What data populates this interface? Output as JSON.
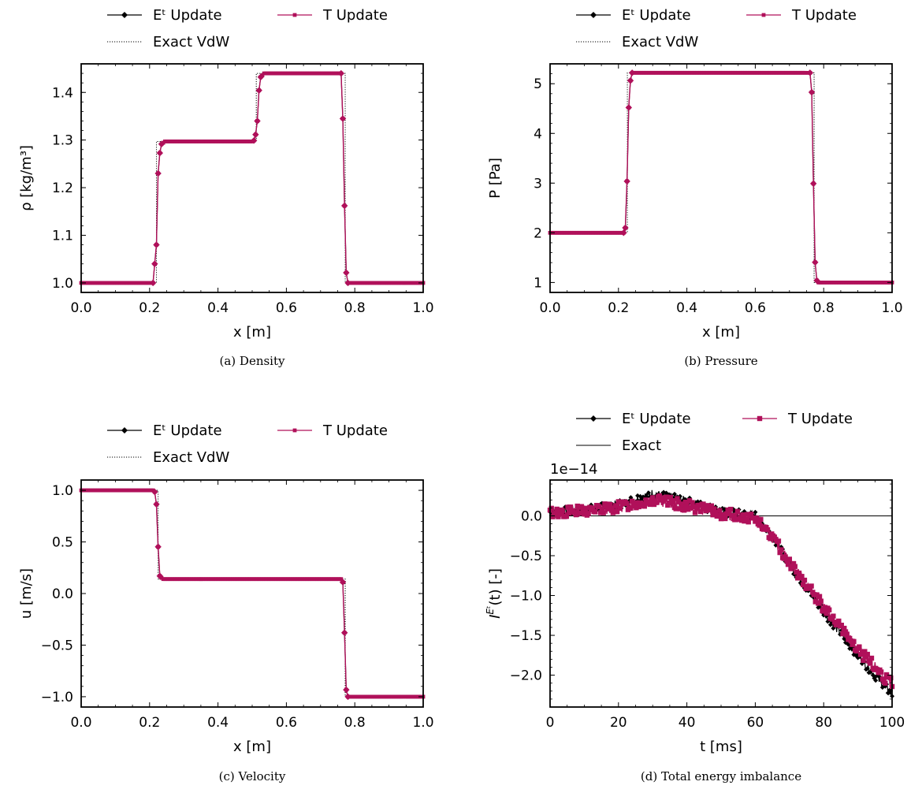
{
  "colors": {
    "e_update": "#000000",
    "t_update": "#b0105a",
    "exact": "#000000",
    "background": "#ffffff"
  },
  "chart_data": [
    {
      "type": "line",
      "caption": "(a) Density",
      "xlabel": "x [m]",
      "ylabel": "ρ [kg/m³]",
      "xlim": [
        0.0,
        1.0
      ],
      "ylim": [
        0.98,
        1.46
      ],
      "xticks": [
        "0.0",
        "0.2",
        "0.4",
        "0.6",
        "0.8",
        "1.0"
      ],
      "yticks": [
        "1.0",
        "1.1",
        "1.2",
        "1.3",
        "1.4"
      ],
      "legend": {
        "placement": "above",
        "entries": [
          "Eᵗ Update",
          "T Update",
          "Exact VdW"
        ]
      },
      "profile": [
        [
          0.0,
          1.0
        ],
        [
          0.21,
          1.0
        ],
        [
          0.22,
          1.08
        ],
        [
          0.225,
          1.23
        ],
        [
          0.232,
          1.29
        ],
        [
          0.245,
          1.297
        ],
        [
          0.5,
          1.297
        ],
        [
          0.508,
          1.3
        ],
        [
          0.515,
          1.34
        ],
        [
          0.522,
          1.43
        ],
        [
          0.535,
          1.44
        ],
        [
          0.762,
          1.44
        ],
        [
          0.768,
          1.25
        ],
        [
          0.773,
          1.03
        ],
        [
          0.78,
          1.0
        ],
        [
          1.0,
          1.0
        ]
      ],
      "exact_profile": [
        [
          0.0,
          1.0
        ],
        [
          0.22,
          1.0
        ],
        [
          0.22,
          1.297
        ],
        [
          0.512,
          1.297
        ],
        [
          0.512,
          1.44
        ],
        [
          0.772,
          1.44
        ],
        [
          0.772,
          1.0
        ],
        [
          1.0,
          1.0
        ]
      ]
    },
    {
      "type": "line",
      "caption": "(b) Pressure",
      "xlabel": "x [m]",
      "ylabel": "P [Pa]",
      "xlim": [
        0.0,
        1.0
      ],
      "ylim": [
        0.8,
        5.4
      ],
      "xticks": [
        "0.0",
        "0.2",
        "0.4",
        "0.6",
        "0.8",
        "1.0"
      ],
      "yticks": [
        "1",
        "2",
        "3",
        "4",
        "5"
      ],
      "legend": {
        "placement": "above",
        "entries": [
          "Eᵗ Update",
          "T Update",
          "Exact VdW"
        ]
      },
      "profile": [
        [
          0.0,
          2.0
        ],
        [
          0.215,
          2.0
        ],
        [
          0.22,
          2.1
        ],
        [
          0.224,
          2.65
        ],
        [
          0.228,
          4.2
        ],
        [
          0.233,
          5.0
        ],
        [
          0.24,
          5.22
        ],
        [
          0.76,
          5.22
        ],
        [
          0.766,
          4.75
        ],
        [
          0.771,
          2.55
        ],
        [
          0.776,
          1.12
        ],
        [
          0.782,
          1.0
        ],
        [
          1.0,
          1.0
        ]
      ],
      "exact_profile": [
        [
          0.0,
          2.0
        ],
        [
          0.226,
          2.0
        ],
        [
          0.226,
          5.22
        ],
        [
          0.772,
          5.22
        ],
        [
          0.772,
          1.0
        ],
        [
          1.0,
          1.0
        ]
      ]
    },
    {
      "type": "line",
      "caption": "(c) Velocity",
      "xlabel": "x [m]",
      "ylabel": "u [m/s]",
      "xlim": [
        0.0,
        1.0
      ],
      "ylim": [
        -1.1,
        1.1
      ],
      "xticks": [
        "0.0",
        "0.2",
        "0.4",
        "0.6",
        "0.8",
        "1.0"
      ],
      "yticks": [
        "1.0",
        "0.5",
        "0.0",
        "−0.5",
        "−1.0"
      ],
      "legend": {
        "placement": "above",
        "entries": [
          "Eᵗ Update",
          "T Update",
          "Exact VdW"
        ]
      },
      "profile": [
        [
          0.0,
          1.0
        ],
        [
          0.212,
          1.0
        ],
        [
          0.218,
          0.97
        ],
        [
          0.222,
          0.76
        ],
        [
          0.226,
          0.35
        ],
        [
          0.23,
          0.17
        ],
        [
          0.238,
          0.14
        ],
        [
          0.762,
          0.14
        ],
        [
          0.766,
          0.1
        ],
        [
          0.77,
          -0.38
        ],
        [
          0.774,
          -0.92
        ],
        [
          0.78,
          -1.0
        ],
        [
          1.0,
          -1.0
        ]
      ],
      "exact_profile": [
        [
          0.0,
          1.0
        ],
        [
          0.225,
          1.0
        ],
        [
          0.225,
          0.14
        ],
        [
          0.772,
          0.14
        ],
        [
          0.772,
          -1.0
        ],
        [
          1.0,
          -1.0
        ]
      ]
    },
    {
      "type": "line",
      "caption": "(d) Total energy imbalance",
      "xlabel": "t [ms]",
      "ylabel": "I^{E^t}(t) [-]",
      "offset_text": "1e−14",
      "xlim": [
        0,
        100
      ],
      "ylim": [
        -2.4,
        0.45
      ],
      "xticks": [
        "0",
        "20",
        "40",
        "60",
        "80",
        "100"
      ],
      "yticks": [
        "0.0",
        "−0.5",
        "−1.0",
        "−1.5",
        "−2.0"
      ],
      "legend": {
        "placement": "above",
        "entries": [
          "Eᵗ Update",
          "T Update",
          "Exact"
        ]
      },
      "e_series": [
        [
          0,
          0.05
        ],
        [
          10,
          0.07
        ],
        [
          20,
          0.14
        ],
        [
          30,
          0.28
        ],
        [
          40,
          0.18
        ],
        [
          50,
          0.05
        ],
        [
          60,
          0.0
        ],
        [
          65,
          -0.25
        ],
        [
          70,
          -0.6
        ],
        [
          80,
          -1.2
        ],
        [
          90,
          -1.75
        ],
        [
          100,
          -2.25
        ]
      ],
      "t_series": [
        [
          0,
          0.04
        ],
        [
          10,
          0.06
        ],
        [
          20,
          0.11
        ],
        [
          30,
          0.2
        ],
        [
          40,
          0.13
        ],
        [
          50,
          0.03
        ],
        [
          60,
          -0.03
        ],
        [
          65,
          -0.27
        ],
        [
          70,
          -0.58
        ],
        [
          80,
          -1.15
        ],
        [
          90,
          -1.68
        ],
        [
          100,
          -2.12
        ]
      ],
      "exact_series": [
        [
          0,
          0.0
        ],
        [
          100,
          0.0
        ]
      ]
    }
  ]
}
